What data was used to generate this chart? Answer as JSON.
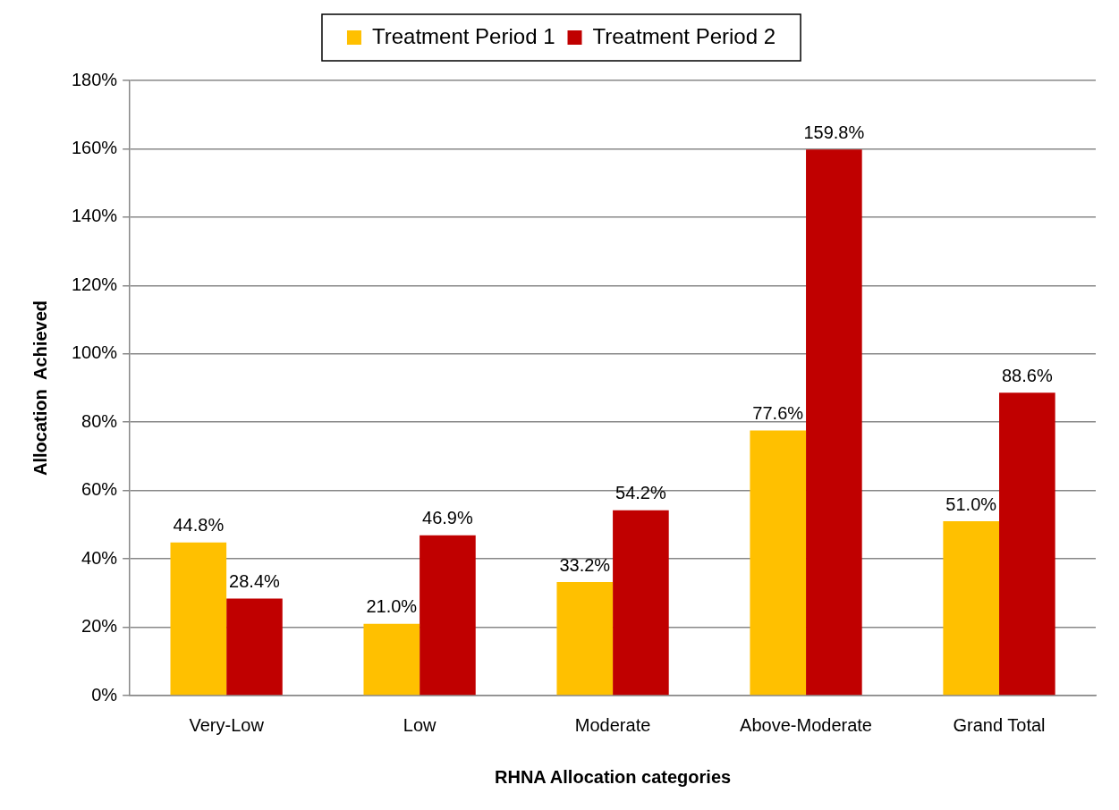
{
  "chart_data": {
    "type": "bar",
    "xlabel": "RHNA Allocation categories",
    "ylabel": "Allocation  Achieved",
    "categories": [
      "Very-Low",
      "Low",
      "Moderate",
      "Above-Moderate",
      "Grand Total"
    ],
    "series": [
      {
        "name": "Treatment Period 1",
        "color": "#ffc000",
        "values": [
          44.8,
          21.0,
          33.2,
          77.6,
          51.0
        ],
        "value_labels": [
          "44.8%",
          "21.0%",
          "33.2%",
          "77.6%",
          "51.0%"
        ]
      },
      {
        "name": "Treatment Period 2",
        "color": "#c00000",
        "values": [
          28.4,
          46.9,
          54.2,
          159.8,
          88.6
        ],
        "value_labels": [
          "28.4%",
          "46.9%",
          "54.2%",
          "159.8%",
          "88.6%"
        ]
      }
    ],
    "ylim": [
      0,
      180
    ],
    "yticks": [
      {
        "value": 0,
        "label": "0%"
      },
      {
        "value": 20,
        "label": "20%"
      },
      {
        "value": 40,
        "label": "40%"
      },
      {
        "value": 60,
        "label": "60%"
      },
      {
        "value": 80,
        "label": "80%"
      },
      {
        "value": 100,
        "label": "100%"
      },
      {
        "value": 120,
        "label": "120%"
      },
      {
        "value": 140,
        "label": "140%"
      },
      {
        "value": 160,
        "label": "160%"
      },
      {
        "value": 180,
        "label": "180%"
      }
    ],
    "grid": "y",
    "legend": "top"
  }
}
